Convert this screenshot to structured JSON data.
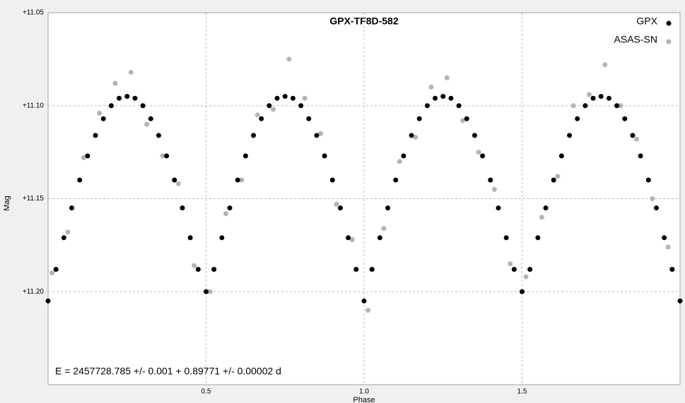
{
  "chart_data": {
    "type": "scatter",
    "title": "GPX-TF8D-582",
    "x_label": "Phase",
    "y_label": "Mag",
    "annotation": "E = 2457728.785 +/- 0.001 + 0.89771 +/- 0.00002 d",
    "xlim": [
      0,
      2
    ],
    "ylim": [
      11.05,
      11.25
    ],
    "y_inverted": true,
    "grid": true,
    "legend": "top-right",
    "xticks": [
      0.5,
      {
        "value": 1,
        "label": "1.0"
      },
      1.5
    ],
    "yticks": [
      {
        "value": 11.05,
        "label": "+11.05"
      },
      {
        "value": 11.1,
        "label": "+11.10"
      },
      {
        "value": 11.15,
        "label": "+11.15"
      },
      {
        "value": 11.2,
        "label": "+11.20"
      }
    ],
    "series": [
      {
        "name": "ASAS-SN",
        "color": "#b4b4b4",
        "x": [
          0.0125,
          0.0625,
          0.1125,
          0.1625,
          0.2125,
          0.2625,
          0.3125,
          0.3625,
          0.4125,
          0.4625,
          0.5125,
          0.5625,
          0.6125,
          0.6625,
          0.7125,
          0.7625,
          0.8125,
          0.8625,
          0.9125,
          0.9625,
          1.0125,
          1.0625,
          1.1125,
          1.1625,
          1.2125,
          1.2625,
          1.3125,
          1.3625,
          1.4125,
          1.4625,
          1.5125,
          1.5625,
          1.6125,
          1.6625,
          1.7125,
          1.7625,
          1.8125,
          1.8625,
          1.9125,
          1.9625
        ],
        "values": [
          11.19,
          11.168,
          11.128,
          11.104,
          11.088,
          11.082,
          11.11,
          11.127,
          11.142,
          11.186,
          11.2,
          11.158,
          11.14,
          11.105,
          11.102,
          11.075,
          11.096,
          11.115,
          11.153,
          11.172,
          11.21,
          11.166,
          11.13,
          11.117,
          11.09,
          11.085,
          11.108,
          11.125,
          11.145,
          11.185,
          11.192,
          11.16,
          11.138,
          11.1,
          11.094,
          11.078,
          11.1,
          11.118,
          11.15,
          11.176
        ]
      },
      {
        "name": "GPX",
        "color": "#000000",
        "x": [
          0,
          0.025,
          0.05,
          0.075,
          0.1,
          0.125,
          0.15,
          0.175,
          0.2,
          0.225,
          0.25,
          0.275,
          0.3,
          0.325,
          0.35,
          0.375,
          0.4,
          0.425,
          0.45,
          0.475,
          0.5,
          0.525,
          0.55,
          0.575,
          0.6,
          0.625,
          0.65,
          0.675,
          0.7,
          0.725,
          0.75,
          0.775,
          0.8,
          0.825,
          0.85,
          0.875,
          0.9,
          0.925,
          0.95,
          0.975,
          1,
          1.025,
          1.05,
          1.075,
          1.1,
          1.125,
          1.15,
          1.175,
          1.2,
          1.225,
          1.25,
          1.275,
          1.3,
          1.325,
          1.35,
          1.375,
          1.4,
          1.425,
          1.45,
          1.475,
          1.5,
          1.525,
          1.55,
          1.575,
          1.6,
          1.625,
          1.65,
          1.675,
          1.7,
          1.725,
          1.75,
          1.775,
          1.8,
          1.825,
          1.85,
          1.875,
          1.9,
          1.925,
          1.95,
          1.975,
          2
        ],
        "values": [
          11.205,
          11.188,
          11.171,
          11.155,
          11.14,
          11.127,
          11.116,
          11.107,
          11.1,
          11.096,
          11.095,
          11.096,
          11.1,
          11.107,
          11.116,
          11.127,
          11.14,
          11.155,
          11.171,
          11.188,
          11.2,
          11.188,
          11.171,
          11.155,
          11.14,
          11.127,
          11.116,
          11.107,
          11.1,
          11.096,
          11.095,
          11.096,
          11.1,
          11.107,
          11.116,
          11.127,
          11.14,
          11.155,
          11.171,
          11.188,
          11.205,
          11.188,
          11.171,
          11.155,
          11.14,
          11.127,
          11.116,
          11.107,
          11.1,
          11.096,
          11.095,
          11.096,
          11.1,
          11.107,
          11.116,
          11.127,
          11.14,
          11.155,
          11.171,
          11.188,
          11.2,
          11.188,
          11.171,
          11.155,
          11.14,
          11.127,
          11.116,
          11.107,
          11.1,
          11.096,
          11.095,
          11.096,
          11.1,
          11.107,
          11.116,
          11.127,
          11.14,
          11.155,
          11.171,
          11.188,
          11.205
        ]
      }
    ]
  }
}
